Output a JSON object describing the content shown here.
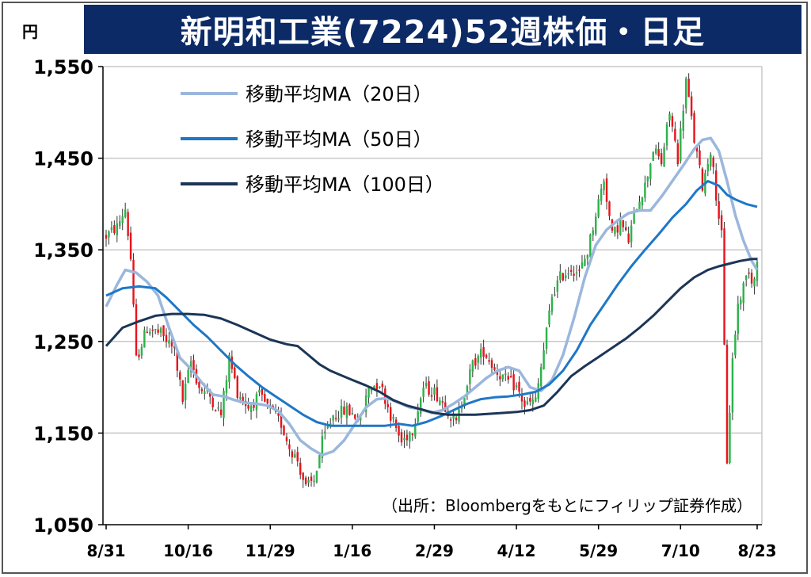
{
  "chart_data": {
    "type": "candlestick",
    "title": "新明和工業(7224)52週株価・日足",
    "unit": "円",
    "source": "（出所：Bloombergをもとにフィリップ証券作成）",
    "ylim": [
      1050,
      1550
    ],
    "yticks": [
      1050,
      1150,
      1250,
      1350,
      1450,
      1550
    ],
    "ytick_labels": [
      "1,050",
      "1,150",
      "1,250",
      "1,350",
      "1,450",
      "1,550"
    ],
    "x_range": [
      0,
      238
    ],
    "xticks": [
      {
        "index": 0,
        "label": "8/31"
      },
      {
        "index": 30,
        "label": "10/16"
      },
      {
        "index": 60,
        "label": "11/29"
      },
      {
        "index": 90,
        "label": "1/16"
      },
      {
        "index": 120,
        "label": "2/29"
      },
      {
        "index": 150,
        "label": "4/12"
      },
      {
        "index": 180,
        "label": "5/29"
      },
      {
        "index": 210,
        "label": "7/10"
      },
      {
        "index": 238,
        "label": "8/23"
      }
    ],
    "grid": "horizontal",
    "up_color": "#2cb34a",
    "down_color": "#e8141c",
    "price_anchors": [
      [
        0,
        1365
      ],
      [
        4,
        1375
      ],
      [
        7,
        1395
      ],
      [
        9,
        1340
      ],
      [
        11,
        1230
      ],
      [
        15,
        1265
      ],
      [
        20,
        1258
      ],
      [
        25,
        1240
      ],
      [
        28,
        1185
      ],
      [
        31,
        1228
      ],
      [
        34,
        1200
      ],
      [
        38,
        1190
      ],
      [
        42,
        1170
      ],
      [
        45,
        1232
      ],
      [
        48,
        1195
      ],
      [
        52,
        1178
      ],
      [
        56,
        1190
      ],
      [
        60,
        1175
      ],
      [
        64,
        1160
      ],
      [
        67,
        1135
      ],
      [
        70,
        1120
      ],
      [
        73,
        1090
      ],
      [
        76,
        1098
      ],
      [
        79,
        1140
      ],
      [
        83,
        1170
      ],
      [
        88,
        1175
      ],
      [
        93,
        1165
      ],
      [
        96,
        1200
      ],
      [
        100,
        1205
      ],
      [
        104,
        1170
      ],
      [
        108,
        1140
      ],
      [
        112,
        1155
      ],
      [
        116,
        1200
      ],
      [
        120,
        1195
      ],
      [
        124,
        1180
      ],
      [
        128,
        1160
      ],
      [
        131,
        1195
      ],
      [
        134,
        1225
      ],
      [
        138,
        1240
      ],
      [
        142,
        1220
      ],
      [
        146,
        1208
      ],
      [
        150,
        1200
      ],
      [
        153,
        1180
      ],
      [
        157,
        1185
      ],
      [
        160,
        1240
      ],
      [
        163,
        1300
      ],
      [
        166,
        1320
      ],
      [
        170,
        1330
      ],
      [
        173,
        1325
      ],
      [
        176,
        1348
      ],
      [
        179,
        1390
      ],
      [
        182,
        1428
      ],
      [
        185,
        1365
      ],
      [
        188,
        1380
      ],
      [
        191,
        1360
      ],
      [
        194,
        1400
      ],
      [
        197,
        1420
      ],
      [
        200,
        1460
      ],
      [
        203,
        1445
      ],
      [
        206,
        1500
      ],
      [
        209,
        1450
      ],
      [
        212,
        1535
      ],
      [
        215,
        1470
      ],
      [
        218,
        1420
      ],
      [
        221,
        1460
      ],
      [
        223,
        1410
      ],
      [
        225,
        1365
      ],
      [
        227,
        1120
      ],
      [
        229,
        1230
      ],
      [
        231,
        1290
      ],
      [
        233,
        1310
      ],
      [
        235,
        1330
      ],
      [
        236,
        1315
      ],
      [
        238,
        1335
      ]
    ],
    "series": [
      {
        "name": "移動平均MA（20日）",
        "color": "#9bb7dc",
        "values": [
          [
            0,
            1288
          ],
          [
            4,
            1312
          ],
          [
            7,
            1328
          ],
          [
            11,
            1325
          ],
          [
            15,
            1315
          ],
          [
            19,
            1300
          ],
          [
            23,
            1265
          ],
          [
            27,
            1232
          ],
          [
            31,
            1220
          ],
          [
            35,
            1205
          ],
          [
            39,
            1192
          ],
          [
            43,
            1190
          ],
          [
            47,
            1186
          ],
          [
            51,
            1183
          ],
          [
            55,
            1182
          ],
          [
            59,
            1180
          ],
          [
            63,
            1174
          ],
          [
            67,
            1160
          ],
          [
            71,
            1142
          ],
          [
            75,
            1133
          ],
          [
            79,
            1126
          ],
          [
            83,
            1130
          ],
          [
            87,
            1142
          ],
          [
            91,
            1160
          ],
          [
            95,
            1178
          ],
          [
            99,
            1187
          ],
          [
            103,
            1188
          ],
          [
            107,
            1183
          ],
          [
            111,
            1178
          ],
          [
            115,
            1176
          ],
          [
            119,
            1172
          ],
          [
            123,
            1175
          ],
          [
            127,
            1182
          ],
          [
            131,
            1190
          ],
          [
            135,
            1200
          ],
          [
            139,
            1210
          ],
          [
            143,
            1218
          ],
          [
            147,
            1222
          ],
          [
            151,
            1218
          ],
          [
            155,
            1200
          ],
          [
            159,
            1196
          ],
          [
            163,
            1208
          ],
          [
            167,
            1235
          ],
          [
            171,
            1275
          ],
          [
            175,
            1320
          ],
          [
            179,
            1355
          ],
          [
            183,
            1372
          ],
          [
            187,
            1382
          ],
          [
            191,
            1390
          ],
          [
            195,
            1393
          ],
          [
            199,
            1393
          ],
          [
            203,
            1408
          ],
          [
            207,
            1425
          ],
          [
            211,
            1442
          ],
          [
            215,
            1460
          ],
          [
            218,
            1470
          ],
          [
            221,
            1472
          ],
          [
            224,
            1458
          ],
          [
            227,
            1425
          ],
          [
            230,
            1388
          ],
          [
            233,
            1360
          ],
          [
            236,
            1338
          ],
          [
            238,
            1328
          ]
        ]
      },
      {
        "name": "移動平均MA（50日）",
        "color": "#1f77c7",
        "values": [
          [
            0,
            1300
          ],
          [
            6,
            1308
          ],
          [
            12,
            1310
          ],
          [
            18,
            1308
          ],
          [
            22,
            1298
          ],
          [
            27,
            1283
          ],
          [
            32,
            1268
          ],
          [
            37,
            1255
          ],
          [
            42,
            1240
          ],
          [
            47,
            1225
          ],
          [
            52,
            1212
          ],
          [
            57,
            1200
          ],
          [
            62,
            1190
          ],
          [
            67,
            1180
          ],
          [
            72,
            1170
          ],
          [
            77,
            1162
          ],
          [
            82,
            1158
          ],
          [
            87,
            1158
          ],
          [
            92,
            1158
          ],
          [
            97,
            1158
          ],
          [
            102,
            1158
          ],
          [
            107,
            1160
          ],
          [
            112,
            1158
          ],
          [
            117,
            1162
          ],
          [
            122,
            1168
          ],
          [
            127,
            1175
          ],
          [
            132,
            1182
          ],
          [
            137,
            1187
          ],
          [
            142,
            1189
          ],
          [
            147,
            1190
          ],
          [
            152,
            1192
          ],
          [
            157,
            1195
          ],
          [
            162,
            1203
          ],
          [
            167,
            1218
          ],
          [
            172,
            1240
          ],
          [
            177,
            1268
          ],
          [
            182,
            1290
          ],
          [
            187,
            1312
          ],
          [
            192,
            1332
          ],
          [
            197,
            1350
          ],
          [
            202,
            1367
          ],
          [
            207,
            1385
          ],
          [
            212,
            1400
          ],
          [
            216,
            1415
          ],
          [
            220,
            1425
          ],
          [
            224,
            1420
          ],
          [
            227,
            1410
          ],
          [
            230,
            1405
          ],
          [
            234,
            1400
          ],
          [
            238,
            1397
          ]
        ]
      },
      {
        "name": "移動平均MA（100日）",
        "color": "#1c3557",
        "values": [
          [
            0,
            1245
          ],
          [
            6,
            1265
          ],
          [
            12,
            1272
          ],
          [
            18,
            1278
          ],
          [
            24,
            1280
          ],
          [
            30,
            1280
          ],
          [
            36,
            1279
          ],
          [
            42,
            1275
          ],
          [
            48,
            1268
          ],
          [
            54,
            1260
          ],
          [
            60,
            1252
          ],
          [
            66,
            1247
          ],
          [
            70,
            1245
          ],
          [
            74,
            1235
          ],
          [
            78,
            1225
          ],
          [
            82,
            1218
          ],
          [
            86,
            1213
          ],
          [
            90,
            1208
          ],
          [
            95,
            1202
          ],
          [
            100,
            1195
          ],
          [
            105,
            1186
          ],
          [
            110,
            1180
          ],
          [
            115,
            1176
          ],
          [
            120,
            1172
          ],
          [
            125,
            1170
          ],
          [
            130,
            1170
          ],
          [
            135,
            1170
          ],
          [
            140,
            1171
          ],
          [
            145,
            1172
          ],
          [
            150,
            1173
          ],
          [
            155,
            1175
          ],
          [
            160,
            1180
          ],
          [
            165,
            1195
          ],
          [
            170,
            1212
          ],
          [
            175,
            1223
          ],
          [
            180,
            1233
          ],
          [
            185,
            1243
          ],
          [
            190,
            1253
          ],
          [
            195,
            1265
          ],
          [
            200,
            1278
          ],
          [
            205,
            1293
          ],
          [
            210,
            1308
          ],
          [
            215,
            1320
          ],
          [
            220,
            1328
          ],
          [
            224,
            1332
          ],
          [
            228,
            1335
          ],
          [
            232,
            1338
          ],
          [
            236,
            1340
          ],
          [
            238,
            1340
          ]
        ]
      }
    ]
  }
}
